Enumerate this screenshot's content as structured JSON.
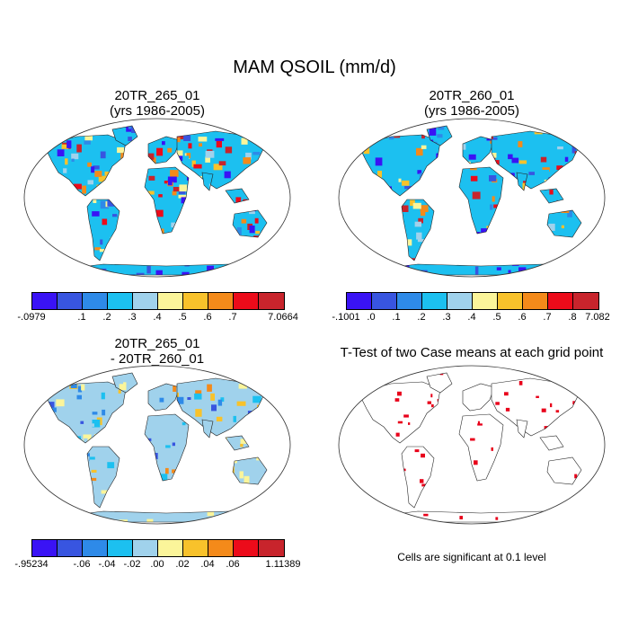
{
  "title": "MAM QSOIL (mm/d)",
  "panels": [
    {
      "title_line1": "20TR_265_01",
      "title_line2": "(yrs 1986-2005)",
      "colorbar": {
        "colors": [
          "#3a13f5",
          "#3855e0",
          "#2e8ae8",
          "#1cc0f0",
          "#a0d2ec",
          "#fbf59a",
          "#f8c22b",
          "#f48a1a",
          "#ec0b1a",
          "#c8242c"
        ],
        "labels": [
          "-.0979",
          "",
          ".1",
          ".2",
          ".3",
          ".4",
          ".5",
          ".6",
          ".7",
          "",
          "7.0664"
        ]
      }
    },
    {
      "title_line1": "20TR_260_01",
      "title_line2": "(yrs 1986-2005)",
      "colorbar": {
        "colors": [
          "#3a13f5",
          "#3855e0",
          "#2e8ae8",
          "#1cc0f0",
          "#a0d2ec",
          "#fbf59a",
          "#f8c22b",
          "#f48a1a",
          "#ec0b1a",
          "#c8242c"
        ],
        "labels": [
          "-.1001",
          ".0",
          ".1",
          ".2",
          ".3",
          ".4",
          ".5",
          ".6",
          ".7",
          ".8",
          "7.082"
        ]
      }
    },
    {
      "title_line1": "20TR_265_01",
      "title_line2": "- 20TR_260_01",
      "colorbar": {
        "colors": [
          "#3a13f5",
          "#3855e0",
          "#2e8ae8",
          "#1cc0f0",
          "#a0d2ec",
          "#fbf59a",
          "#f8c22b",
          "#f48a1a",
          "#ec0b1a",
          "#c8242c"
        ],
        "labels": [
          "-.95234",
          "",
          "-.06",
          "-.04",
          "-.02",
          ".00",
          ".02",
          ".04",
          ".06",
          "",
          "1.11389"
        ]
      }
    },
    {
      "title_line1": "T-Test of two Case means at each grid point",
      "title_line2": "",
      "note": "Cells are significant at 0.1 level"
    }
  ]
}
